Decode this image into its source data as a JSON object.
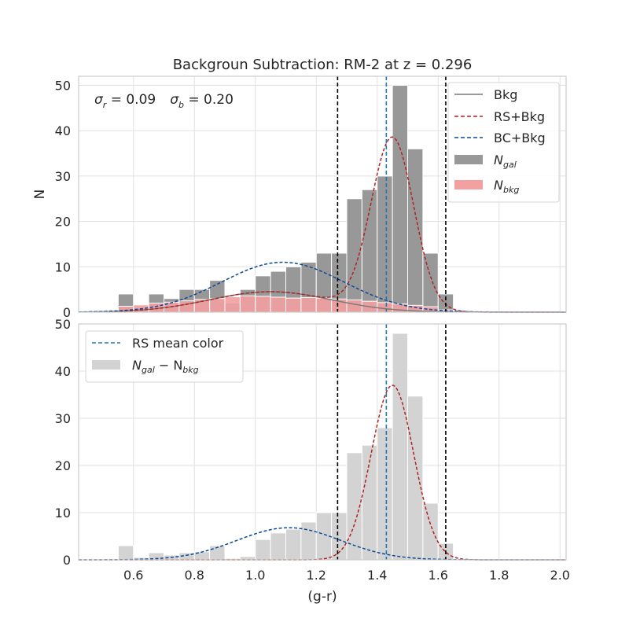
{
  "chart_data": [
    {
      "type": "bar",
      "panel": "top",
      "title": "Backgroun Subtraction: RM-2 at z = 0.296",
      "ylabel": "N",
      "xlabel": "",
      "xlim": [
        0.42,
        2.02
      ],
      "ylim": [
        0,
        52
      ],
      "grid": true,
      "annotation": {
        "sigma_r_label": "σ",
        "sigma_r_sub": "r",
        "sigma_r_value": " = 0.09",
        "sigma_b_label": "σ",
        "sigma_b_sub": "b",
        "sigma_b_value": " = 0.20"
      },
      "bin_width": 0.05,
      "x": [
        0.575,
        0.625,
        0.675,
        0.725,
        0.775,
        0.825,
        0.875,
        0.925,
        0.975,
        1.025,
        1.075,
        1.125,
        1.175,
        1.225,
        1.275,
        1.325,
        1.375,
        1.425,
        1.475,
        1.525,
        1.575,
        1.625
      ],
      "series": [
        {
          "name": "N",
          "name_sub": "gal",
          "color": "#989898",
          "values": [
            4,
            1,
            4,
            3,
            5,
            5,
            7,
            2,
            5,
            8,
            9,
            10,
            11,
            13,
            13,
            25,
            27,
            30,
            50,
            36,
            13,
            4
          ]
        },
        {
          "name": "N",
          "name_sub": "bkg",
          "color": "#f2a0a0",
          "values": [
            1.3,
            1.6,
            2.0,
            2.2,
            2.5,
            2.8,
            3.0,
            3.4,
            3.6,
            3.5,
            3.3,
            3.1,
            3.2,
            3.1,
            2.9,
            2.7,
            2.4,
            2.1,
            1.8,
            1.5,
            1.2,
            0.5
          ]
        }
      ],
      "curves": [
        {
          "name": "Bkg",
          "color": "#7a7a7a",
          "style": "solid",
          "model": "gaussian",
          "amp": 4.5,
          "mu": 1.05,
          "sigma": 0.2
        },
        {
          "name": "RS+Bkg",
          "color": "#b22222",
          "style": "dashed",
          "model": "bkg+gaussian",
          "amp": 38,
          "mu": 1.45,
          "sigma": 0.07
        },
        {
          "name": "BC+Bkg",
          "color": "#0b4a94",
          "style": "dashed",
          "model": "gaussian",
          "amp": 11,
          "mu": 1.09,
          "sigma": 0.2
        }
      ],
      "vlines": [
        {
          "x": 1.27,
          "color": "#000000",
          "style": "dashed"
        },
        {
          "x": 1.43,
          "color": "#1f77b4",
          "style": "dashed"
        },
        {
          "x": 1.625,
          "color": "#000000",
          "style": "dashed"
        }
      ],
      "yticks": [
        0,
        10,
        20,
        30,
        40,
        50
      ],
      "legend": "top-right"
    },
    {
      "type": "bar",
      "panel": "bottom",
      "title": "",
      "xlabel": "(g-r)",
      "ylabel": "",
      "xlim": [
        0.42,
        2.02
      ],
      "ylim": [
        0,
        50
      ],
      "grid": true,
      "bin_width": 0.05,
      "x": [
        0.575,
        0.625,
        0.675,
        0.725,
        0.775,
        0.825,
        0.875,
        0.925,
        0.975,
        1.025,
        1.075,
        1.125,
        1.175,
        1.225,
        1.275,
        1.325,
        1.375,
        1.425,
        1.475,
        1.525,
        1.575,
        1.625
      ],
      "series": [
        {
          "name": "N",
          "name_sub": "gal",
          "name2": " − N",
          "name2_sub": "bkg",
          "color": "#d3d3d3",
          "values": [
            3,
            0.5,
            1.5,
            1,
            1.5,
            1.7,
            3,
            0.3,
            0.7,
            4.3,
            5.7,
            6.5,
            8,
            10,
            10,
            22.7,
            24.3,
            28,
            48,
            34.7,
            12,
            3.5
          ]
        }
      ],
      "curves": [
        {
          "name": "RS",
          "color": "#b22222",
          "style": "dashed",
          "model": "gaussian",
          "amp": 37,
          "mu": 1.45,
          "sigma": 0.07
        },
        {
          "name": "BC",
          "color": "#0b4a94",
          "style": "dashed",
          "model": "gaussian",
          "amp": 6.8,
          "mu": 1.11,
          "sigma": 0.17
        }
      ],
      "vlines": [
        {
          "x": 1.27,
          "color": "#000000",
          "style": "dashed"
        },
        {
          "x": 1.43,
          "color": "#1f77b4",
          "style": "dashed",
          "label": "RS mean color"
        },
        {
          "x": 1.625,
          "color": "#000000",
          "style": "dashed"
        }
      ],
      "xticks": [
        0.6,
        0.8,
        1.0,
        1.2,
        1.4,
        1.6,
        1.8,
        2.0
      ],
      "xtick_labels": [
        "0.6",
        "0.8",
        "1.0",
        "1.2",
        "1.4",
        "1.6",
        "1.8",
        "2.0"
      ],
      "yticks": [
        0,
        10,
        20,
        30,
        40,
        50
      ],
      "legend": "top-left"
    }
  ]
}
